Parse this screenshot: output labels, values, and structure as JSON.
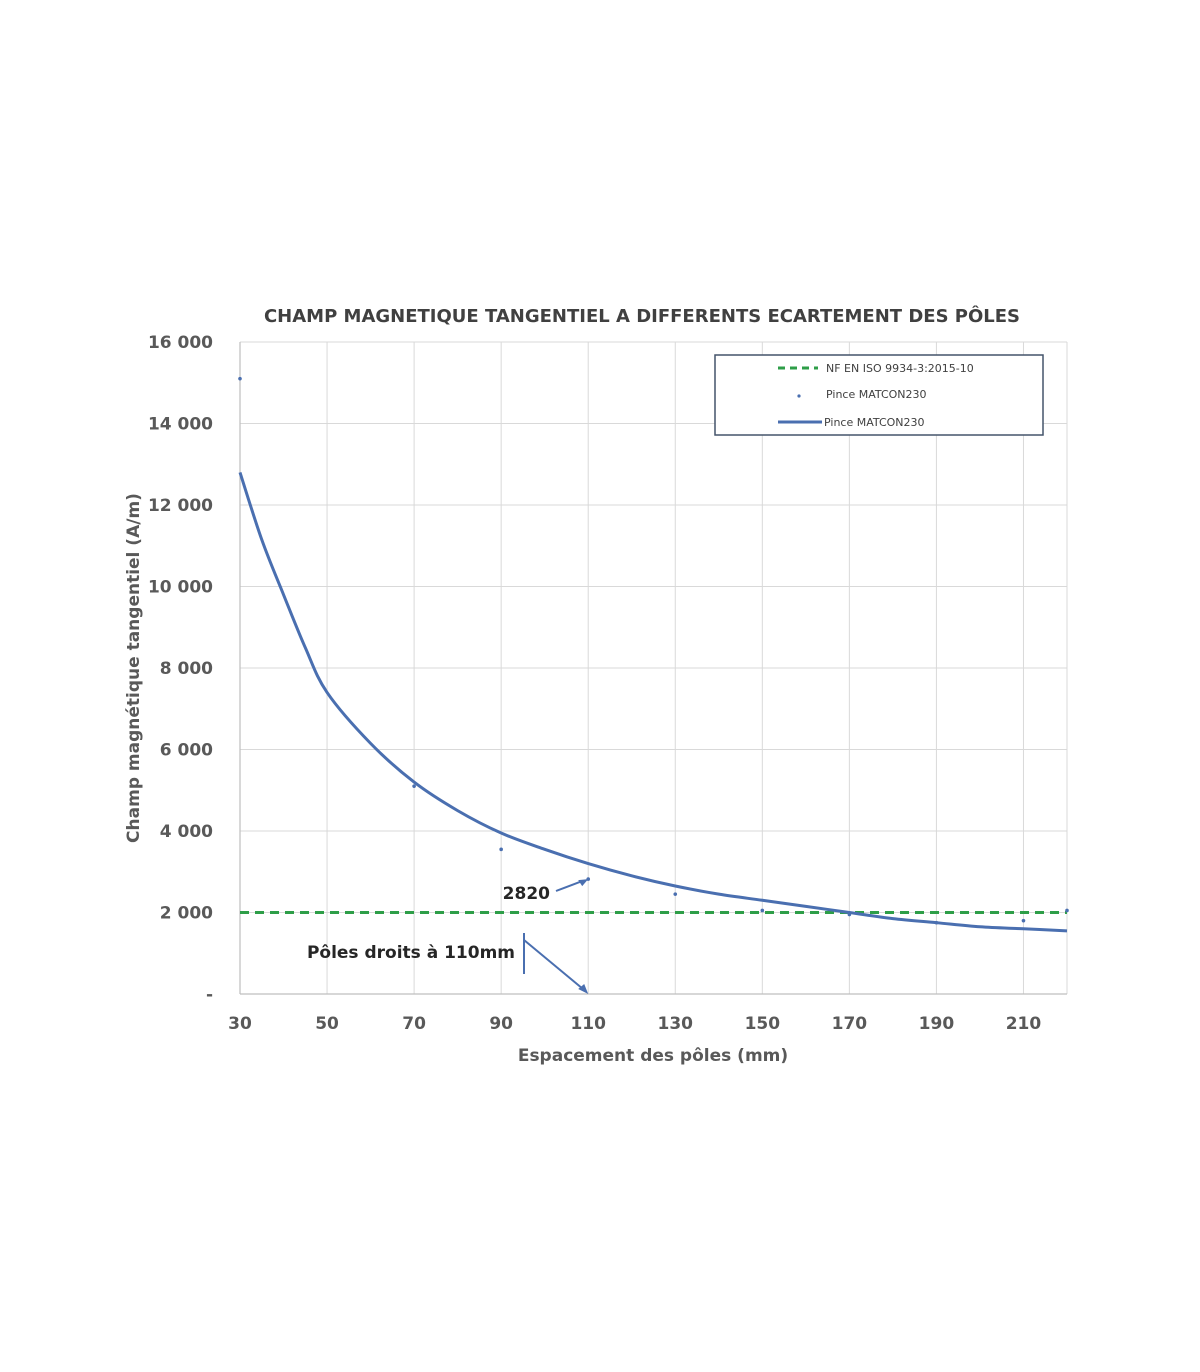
{
  "chart_data": {
    "type": "line",
    "title": "CHAMP MAGNETIQUE TANGENTIEL A DIFFERENTS ECARTEMENT DES PÔLES",
    "xlabel": "Espacement des pôles (mm)",
    "ylabel": "Champ magnétique tangentiel (A/m)",
    "xlim": [
      30,
      220
    ],
    "ylim": [
      0,
      16000
    ],
    "x_ticks": [
      30,
      50,
      70,
      90,
      110,
      130,
      150,
      170,
      190,
      210
    ],
    "x_tick_labels": [
      "30",
      "50",
      "70",
      "90",
      "110",
      "130",
      "150",
      "170",
      "190",
      "210"
    ],
    "y_ticks": [
      0,
      2000,
      4000,
      6000,
      8000,
      10000,
      12000,
      14000,
      16000
    ],
    "y_tick_labels": [
      "-",
      "2 000",
      "4 000",
      "6 000",
      "8 000",
      "10 000",
      "12 000",
      "14 000",
      "16 000"
    ],
    "grid": true,
    "legend_position": "top-right",
    "series": [
      {
        "name": "NF EN ISO 9934-3:2015-10",
        "kind": "reference-line",
        "style": "dashed",
        "color": "#2e9e48",
        "y": 2000
      },
      {
        "name": "Pince MATCON230",
        "kind": "scatter",
        "color": "#4a6fb0",
        "x": [
          30,
          70,
          90,
          110,
          130,
          150,
          170,
          190,
          210,
          220
        ],
        "y": [
          15100,
          5100,
          3550,
          2820,
          2450,
          2050,
          1950,
          1750,
          1800,
          2050
        ]
      },
      {
        "name": "Pince MATCON230",
        "kind": "fitted-curve",
        "color": "#4a6fb0",
        "x": [
          30,
          35,
          40,
          45,
          50,
          60,
          70,
          80,
          90,
          100,
          110,
          120,
          130,
          140,
          150,
          160,
          170,
          180,
          190,
          200,
          210,
          220
        ],
        "y": [
          12800,
          11150,
          9800,
          8500,
          7400,
          6150,
          5200,
          4500,
          3950,
          3550,
          3200,
          2900,
          2650,
          2450,
          2300,
          2150,
          2000,
          1850,
          1750,
          1650,
          1600,
          1550
        ]
      }
    ],
    "annotations": [
      {
        "text": "2820",
        "x": 110,
        "y": 2820
      },
      {
        "text": "Pôles droits à 110mm",
        "x": 110,
        "y": 0
      }
    ]
  }
}
